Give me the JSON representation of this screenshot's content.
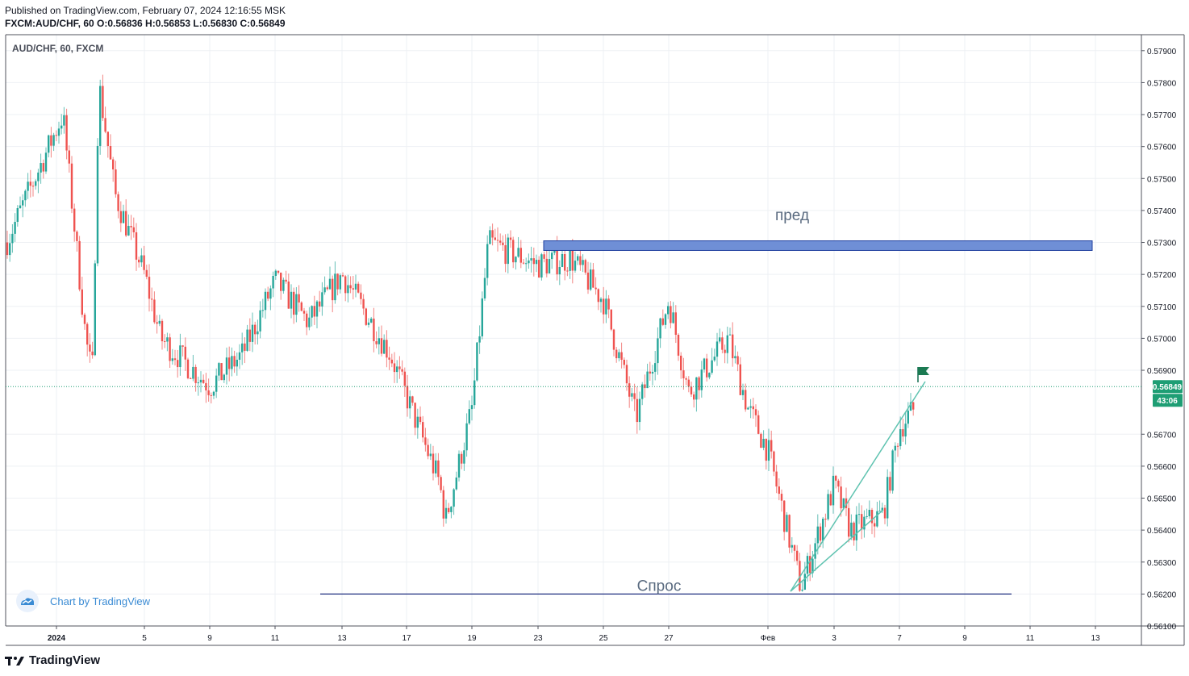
{
  "header": {
    "published": "Published on TradingView.com, February 07, 2024 12:16:55 MSK",
    "ohlc": "FXCM:AUD/CHF, 60  O:0.56836  H:0.56853  L:0.56830  C:0.56849"
  },
  "symbol_label": "AUD/CHF, 60, FXCM",
  "badge_text": "Chart by TradingView",
  "footer_brand": "TradingView",
  "colors": {
    "up": "#26a69a",
    "down": "#ef5350",
    "zone": "#6f8fd6",
    "trend": "#5fc3b0",
    "demand": "#1f2f80",
    "last": "#1e9e74"
  },
  "chart_data": {
    "type": "candlestick",
    "symbol": "AUD/CHF",
    "timeframe": "60",
    "ylim": [
      0.561,
      0.5795
    ],
    "y_ticks": [
      "0.57900",
      "0.57800",
      "0.57700",
      "0.57600",
      "0.57500",
      "0.57400",
      "0.57300",
      "0.57200",
      "0.57100",
      "0.57000",
      "0.56900",
      "0.56700",
      "0.56600",
      "0.56500",
      "0.56400",
      "0.56300",
      "0.56200",
      "0.56100"
    ],
    "x_ticks": [
      "2024",
      "5",
      "9",
      "11",
      "13",
      "17",
      "19",
      "23",
      "25",
      "27",
      "Фев",
      "3",
      "7",
      "9",
      "11",
      "13"
    ],
    "last_price": "0.56849",
    "countdown": "43:06",
    "approx_path": [
      {
        "x": "Jan 1",
        "y": 0.573
      },
      {
        "x": "Jan 1",
        "y": 0.577
      },
      {
        "x": "Jan 2",
        "y": 0.57
      },
      {
        "x": "Jan 2",
        "y": 0.5688
      },
      {
        "x": "Jan 2",
        "y": 0.578
      },
      {
        "x": "Jan 3",
        "y": 0.5745
      },
      {
        "x": "Jan 4",
        "y": 0.572
      },
      {
        "x": "Jan 5",
        "y": 0.57
      },
      {
        "x": "Jan 8",
        "y": 0.5685
      },
      {
        "x": "Jan 9",
        "y": 0.5695
      },
      {
        "x": "Jan 10",
        "y": 0.5718
      },
      {
        "x": "Jan 11",
        "y": 0.5705
      },
      {
        "x": "Jan 12",
        "y": 0.572
      },
      {
        "x": "Jan 15",
        "y": 0.5695
      },
      {
        "x": "Jan 17",
        "y": 0.5655
      },
      {
        "x": "Jan 17",
        "y": 0.5643
      },
      {
        "x": "Jan 18",
        "y": 0.5678
      },
      {
        "x": "Jan 19",
        "y": 0.573
      },
      {
        "x": "Jan 22",
        "y": 0.5723
      },
      {
        "x": "Jan 23",
        "y": 0.5725
      },
      {
        "x": "Jan 24",
        "y": 0.5712
      },
      {
        "x": "Jan 25",
        "y": 0.5675
      },
      {
        "x": "Jan 26",
        "y": 0.5712
      },
      {
        "x": "Jan 27",
        "y": 0.5683
      },
      {
        "x": "Jan 29",
        "y": 0.57
      },
      {
        "x": "Jan 30",
        "y": 0.5678
      },
      {
        "x": "Jan 31",
        "y": 0.5665
      },
      {
        "x": "Feb 1",
        "y": 0.5622
      },
      {
        "x": "Feb 2",
        "y": 0.5654
      },
      {
        "x": "Feb 3",
        "y": 0.564
      },
      {
        "x": "Feb 5",
        "y": 0.5645
      },
      {
        "x": "Feb 6",
        "y": 0.5672
      },
      {
        "x": "Feb 7",
        "y": 0.5685
      }
    ],
    "annotations": [
      {
        "type": "zone",
        "label": "пред",
        "y_low": 0.5728,
        "y_high": 0.573
      },
      {
        "type": "hline",
        "label": "Спрос",
        "y": 0.562
      },
      {
        "type": "trendline",
        "from": {
          "x": "Feb 1",
          "y": 0.562
        },
        "to": {
          "x": "Feb 7",
          "y": 0.5685
        }
      },
      {
        "type": "trendline",
        "from": {
          "x": "Feb 1",
          "y": 0.562
        },
        "to": {
          "x": "Feb 5",
          "y": 0.5645
        }
      }
    ]
  }
}
